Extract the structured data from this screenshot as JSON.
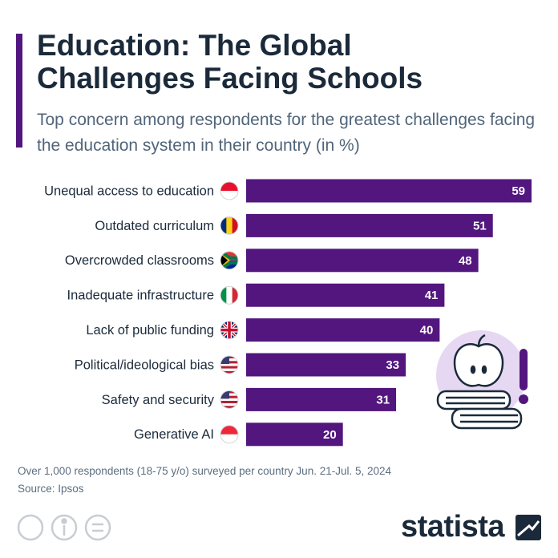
{
  "chart_data": {
    "type": "bar",
    "title": "Education: The Global Challenges Facing Schools",
    "subtitle": "Top concern among respondents for the greatest challenges facing the education system in their country (in %)",
    "categories": [
      "Unequal access to education",
      "Outdated curriculum",
      "Overcrowded classrooms",
      "Inadequate infrastructure",
      "Lack of public funding",
      "Political/ideological bias",
      "Safety and security",
      "Generative AI"
    ],
    "values": [
      59,
      51,
      48,
      41,
      40,
      33,
      31,
      20
    ],
    "color": "#52167e",
    "note": "Over 1,000 respondents (18-75 y/o) surveyed per country Jun. 21-Jul. 5, 2024",
    "source": "Source: Ipsos"
  },
  "brand": "statista"
}
